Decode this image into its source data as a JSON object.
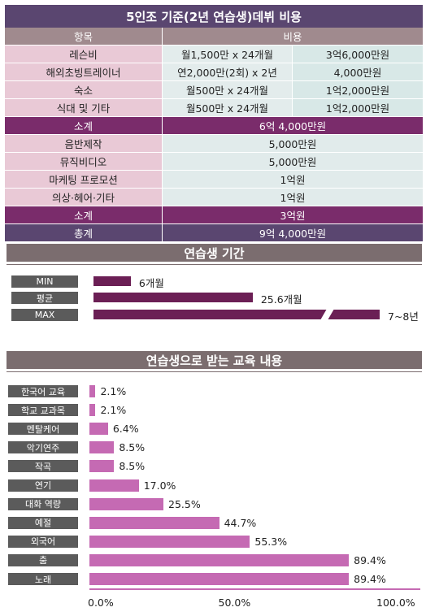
{
  "cost_table": {
    "title": "5인조 기준(2년 연습생)데뷔 비용",
    "header": {
      "item": "항목",
      "cost": "비용"
    },
    "rows": [
      {
        "item": "레슨비",
        "detail": "월1,500만 x 24개월",
        "amount": "3억6,000만원"
      },
      {
        "item": "해외초빙트레이너",
        "detail": "연2,000만(2회) x 2년",
        "amount": "4,000만원"
      },
      {
        "item": "숙소",
        "detail": "월500만 x 24개월",
        "amount": "1억2,000만원"
      },
      {
        "item": "식대 및 기타",
        "detail": "월500만 x 24개월",
        "amount": "1억2,000만원"
      }
    ],
    "subtotal1": {
      "label": "소계",
      "value": "6억 4,000만원"
    },
    "rows2": [
      {
        "item": "음반제작",
        "amount": "5,000만원"
      },
      {
        "item": "뮤직비디오",
        "amount": "5,000만원"
      },
      {
        "item": "마케팅 프로모션",
        "amount": "1억원"
      },
      {
        "item": "의상·헤어·기타",
        "amount": "1억원"
      }
    ],
    "subtotal2": {
      "label": "소계",
      "value": "3억원"
    },
    "total": {
      "label": "총계",
      "value": "9억 4,000만원"
    }
  },
  "chart_data": [
    {
      "type": "bar",
      "title": "연습생 기간",
      "categories": [
        "MIN",
        "평균",
        "MAX"
      ],
      "values": [
        6,
        25.6,
        90
      ],
      "value_labels": [
        "6개월",
        "25.6개월",
        "7~8년"
      ],
      "unit": "개월",
      "axis_break": true
    },
    {
      "type": "bar",
      "title": "연습생으로 받는 교육 내용",
      "categories": [
        "한국어 교육",
        "학교 교과목",
        "멘탈케어",
        "악기연주",
        "작곡",
        "연기",
        "대화 역량",
        "예절",
        "외국어",
        "춤",
        "노래"
      ],
      "values": [
        2.1,
        2.1,
        6.4,
        8.5,
        8.5,
        17.0,
        25.5,
        44.7,
        55.3,
        89.4,
        89.4
      ],
      "value_labels": [
        "2.1%",
        "2.1%",
        "6.4%",
        "8.5%",
        "8.5%",
        "17.0%",
        "25.5%",
        "44.7%",
        "55.3%",
        "89.4%",
        "89.4%"
      ],
      "xlim": [
        0,
        100
      ],
      "xticks": [
        "0.0%",
        "50.0%",
        "100.0%"
      ]
    }
  ],
  "colors": {
    "dark_purple": "#5a4670",
    "subtotal": "#7a2c6b",
    "bar_dark": "#6b1f55",
    "bar_pink": "#c56ab3",
    "label_gray": "#5b5b5b"
  }
}
